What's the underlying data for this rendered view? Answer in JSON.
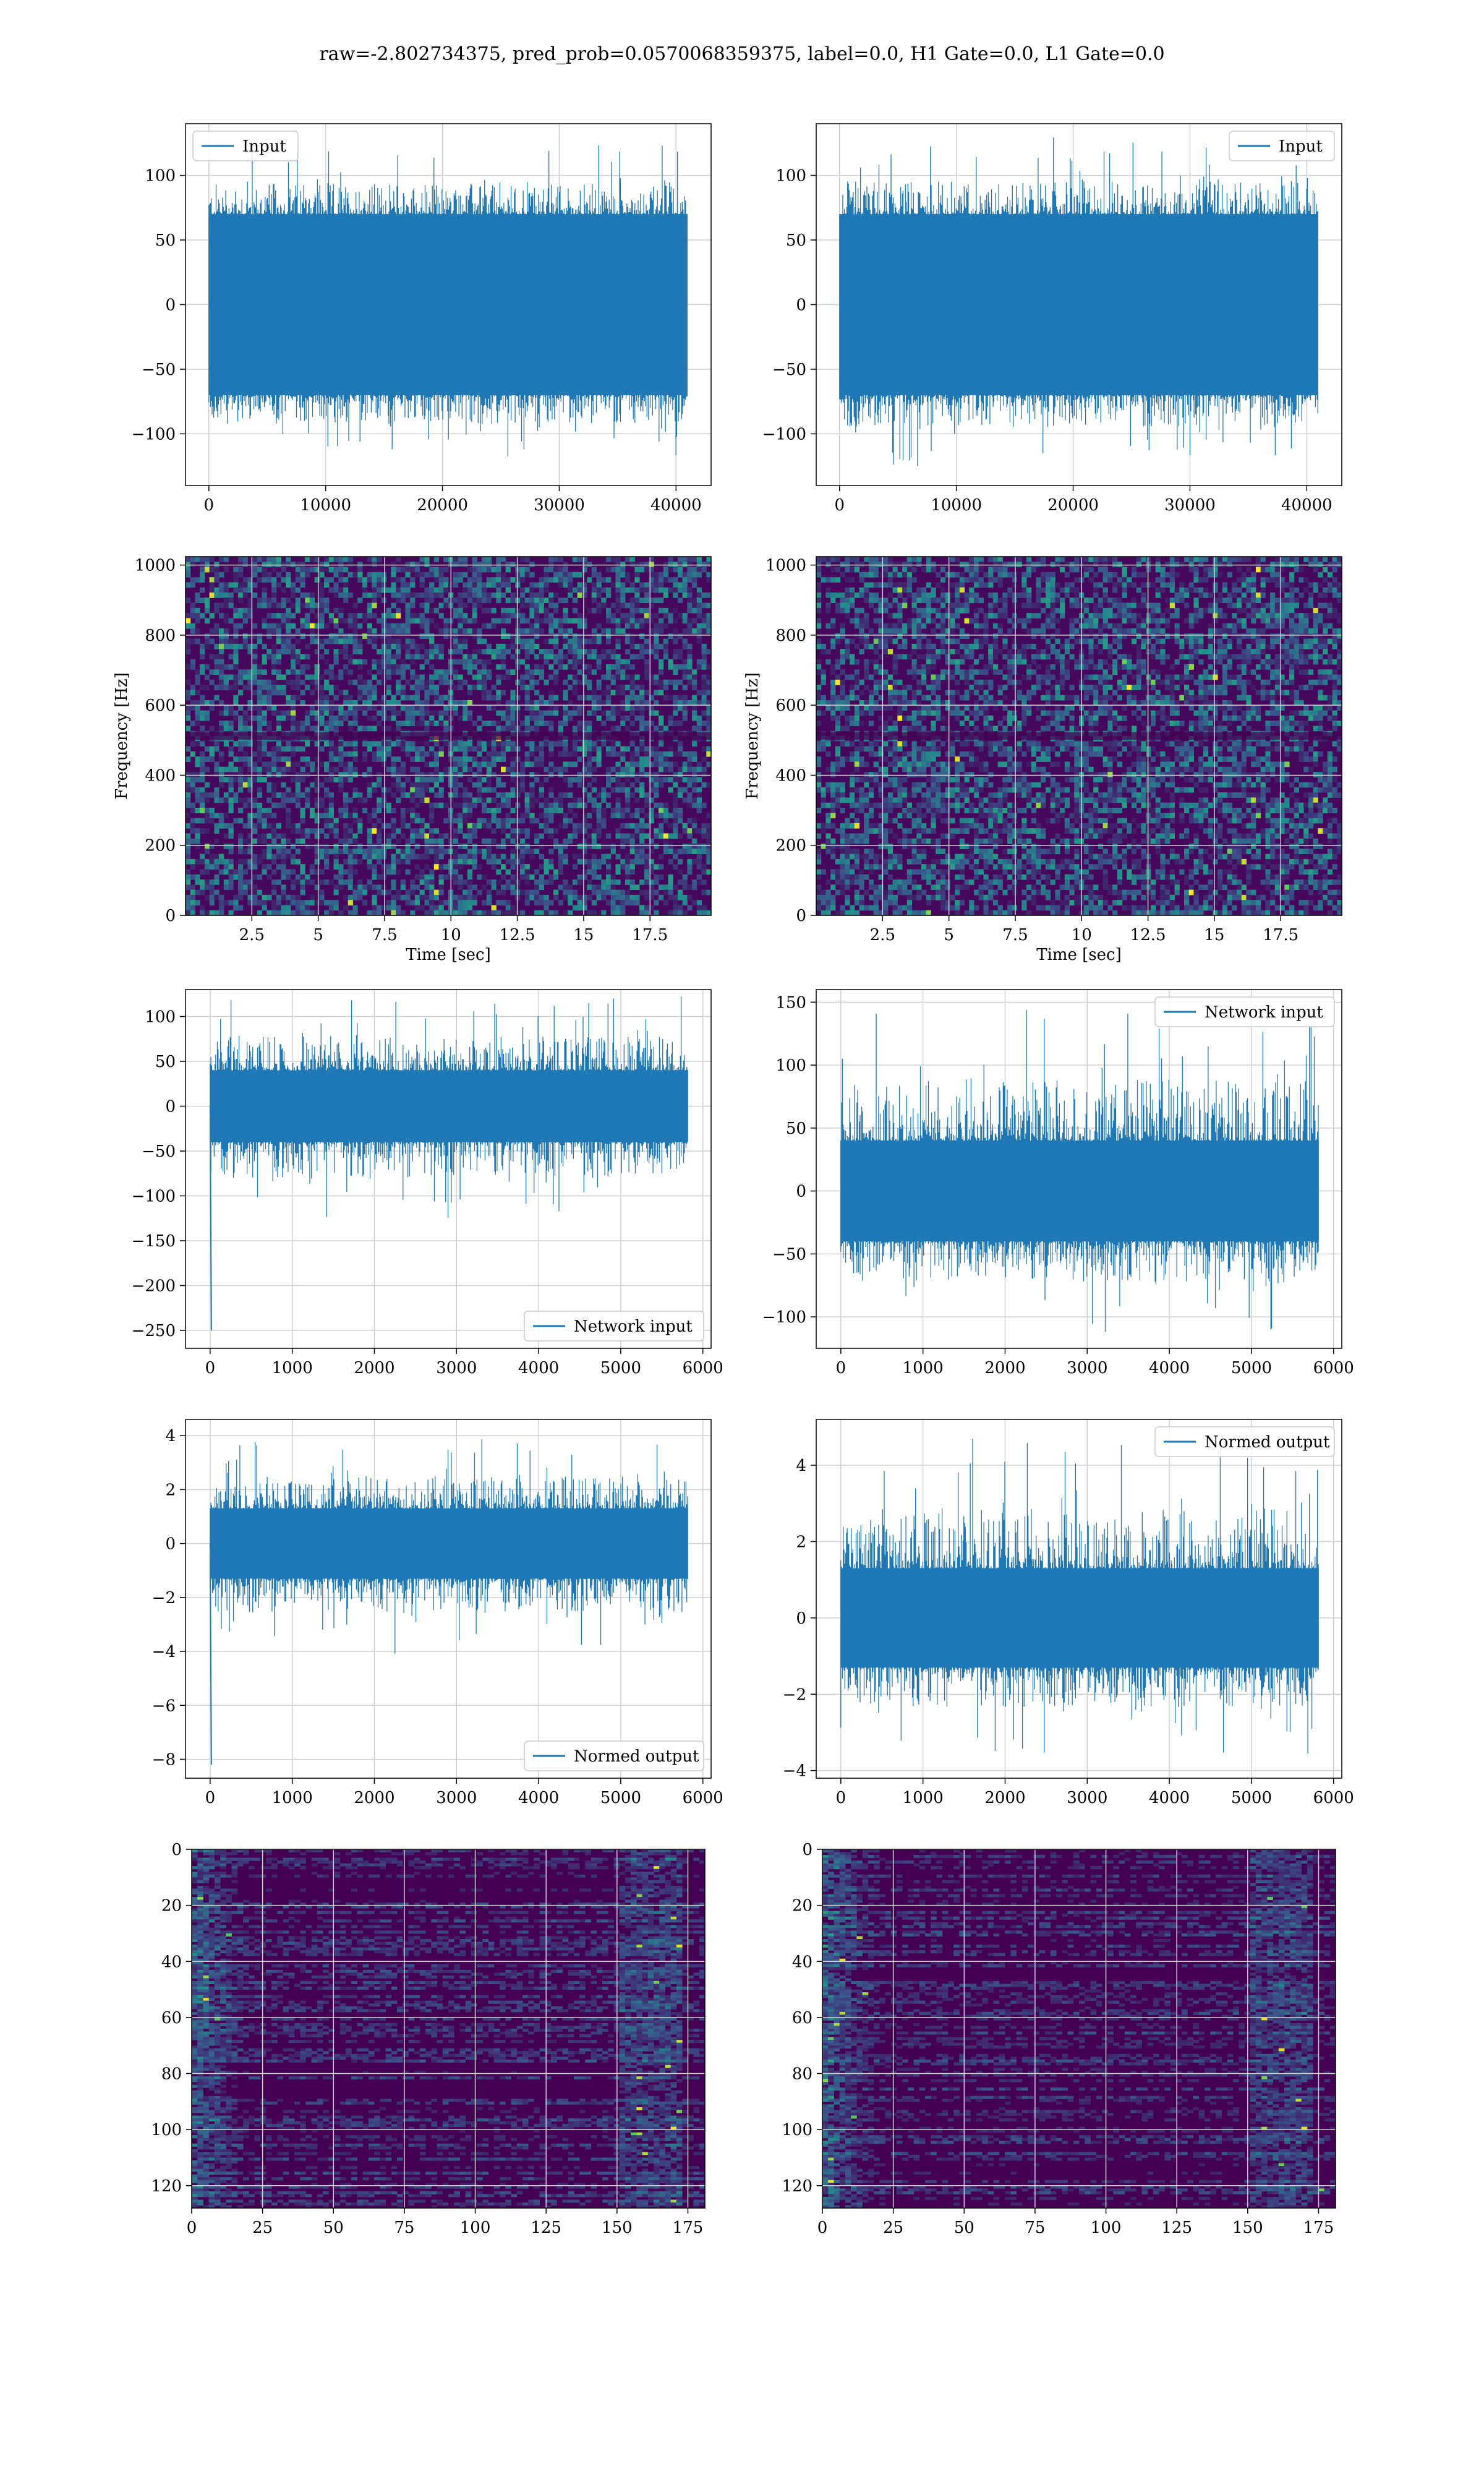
{
  "suptitle": "raw=-2.802734375, pred_prob=0.0570068359375, label=0.0, H1 Gate=0.0, L1 Gate=0.0",
  "colors": {
    "series": "#1f77b4",
    "grid": "#d0d0d0",
    "axis": "#000000",
    "viridis": [
      "#440154",
      "#3b528b",
      "#21918c",
      "#5ec962",
      "#fde725"
    ]
  },
  "chart_data": [
    {
      "type": "line",
      "panel": "input-left",
      "legend": "Input",
      "legend_loc": "upper-left",
      "xlim": [
        -2000,
        43000
      ],
      "ylim": [
        -140,
        140
      ],
      "xticks": [
        0,
        10000,
        20000,
        30000,
        40000
      ],
      "yticks": [
        -100,
        -50,
        0,
        50,
        100
      ],
      "x_extent": [
        0,
        40960
      ],
      "envelope": {
        "low": -70,
        "high": 70,
        "peak_low": -120,
        "peak_high": 125
      },
      "xlabel": "",
      "ylabel": "",
      "grid": true
    },
    {
      "type": "line",
      "panel": "input-right",
      "legend": "Input",
      "legend_loc": "upper-right",
      "xlim": [
        -2000,
        43000
      ],
      "ylim": [
        -140,
        140
      ],
      "xticks": [
        0,
        10000,
        20000,
        30000,
        40000
      ],
      "yticks": [
        -100,
        -50,
        0,
        50,
        100
      ],
      "x_extent": [
        0,
        40960
      ],
      "envelope": {
        "low": -70,
        "high": 70,
        "peak_low": -125,
        "peak_high": 130
      },
      "xlabel": "",
      "ylabel": "",
      "grid": true
    },
    {
      "type": "heatmap",
      "panel": "spectrogram-left",
      "xlim": [
        0,
        19.8
      ],
      "ylim": [
        0,
        1024
      ],
      "xticks": [
        2.5,
        5.0,
        7.5,
        10.0,
        12.5,
        15.0,
        17.5
      ],
      "yticks": [
        0,
        200,
        400,
        600,
        800,
        1000
      ],
      "xlabel": "Time [sec]",
      "ylabel": "Frequency [Hz]",
      "grid": true,
      "colormap": "viridis"
    },
    {
      "type": "heatmap",
      "panel": "spectrogram-right",
      "xlim": [
        0,
        19.8
      ],
      "ylim": [
        0,
        1024
      ],
      "xticks": [
        2.5,
        5.0,
        7.5,
        10.0,
        12.5,
        15.0,
        17.5
      ],
      "yticks": [
        0,
        200,
        400,
        600,
        800,
        1000
      ],
      "xlabel": "Time [sec]",
      "ylabel": "Frequency [Hz]",
      "grid": true,
      "colormap": "viridis"
    },
    {
      "type": "line",
      "panel": "network-left",
      "legend": "Network input",
      "legend_loc": "lower-right",
      "xlim": [
        -300,
        6100
      ],
      "ylim": [
        -270,
        130
      ],
      "xticks": [
        0,
        1000,
        2000,
        3000,
        4000,
        5000,
        6000
      ],
      "yticks": [
        -250,
        -200,
        -150,
        -100,
        -50,
        0,
        50,
        100
      ],
      "x_extent": [
        0,
        5820
      ],
      "envelope": {
        "low": -40,
        "high": 40,
        "peak_low": -130,
        "peak_high": 125
      },
      "spike": {
        "x": 0,
        "y": -250
      },
      "xlabel": "",
      "ylabel": "",
      "grid": true
    },
    {
      "type": "line",
      "panel": "network-right",
      "legend": "Network input",
      "legend_loc": "upper-right",
      "xlim": [
        -300,
        6100
      ],
      "ylim": [
        -125,
        160
      ],
      "xticks": [
        0,
        1000,
        2000,
        3000,
        4000,
        5000,
        6000
      ],
      "yticks": [
        -100,
        -50,
        0,
        50,
        100,
        150
      ],
      "x_extent": [
        0,
        5820
      ],
      "envelope": {
        "low": -40,
        "high": 40,
        "peak_low": -112,
        "peak_high": 148
      },
      "xlabel": "",
      "ylabel": "",
      "grid": true
    },
    {
      "type": "line",
      "panel": "normed-left",
      "legend": "Normed output",
      "legend_loc": "lower-right",
      "xlim": [
        -300,
        6100
      ],
      "ylim": [
        -8.7,
        4.6
      ],
      "xticks": [
        0,
        1000,
        2000,
        3000,
        4000,
        5000,
        6000
      ],
      "yticks": [
        -8,
        -6,
        -4,
        -2,
        0,
        2,
        4
      ],
      "x_extent": [
        0,
        5820
      ],
      "envelope": {
        "low": -1.3,
        "high": 1.3,
        "peak_low": -4.2,
        "peak_high": 4.0
      },
      "spike": {
        "x": 0,
        "y": -8.2
      },
      "xlabel": "",
      "ylabel": "",
      "grid": true
    },
    {
      "type": "line",
      "panel": "normed-right",
      "legend": "Normed output",
      "legend_loc": "upper-right",
      "xlim": [
        -300,
        6100
      ],
      "ylim": [
        -4.2,
        5.2
      ],
      "xticks": [
        0,
        1000,
        2000,
        3000,
        4000,
        5000,
        6000
      ],
      "yticks": [
        -4,
        -2,
        0,
        2,
        4
      ],
      "x_extent": [
        0,
        5820
      ],
      "envelope": {
        "low": -1.3,
        "high": 1.3,
        "peak_low": -3.6,
        "peak_high": 4.8
      },
      "xlabel": "",
      "ylabel": "",
      "grid": true
    },
    {
      "type": "heatmap",
      "panel": "matrix-left",
      "xlim": [
        0,
        181
      ],
      "ylim": [
        128,
        0
      ],
      "xticks": [
        0,
        25,
        50,
        75,
        100,
        125,
        150,
        175
      ],
      "yticks": [
        0,
        20,
        40,
        60,
        80,
        100,
        120
      ],
      "xlabel": "",
      "ylabel": "",
      "grid": true,
      "colormap": "viridis"
    },
    {
      "type": "heatmap",
      "panel": "matrix-right",
      "xlim": [
        0,
        181
      ],
      "ylim": [
        128,
        0
      ],
      "xticks": [
        0,
        25,
        50,
        75,
        100,
        125,
        150,
        175
      ],
      "yticks": [
        0,
        20,
        40,
        60,
        80,
        100,
        120
      ],
      "xlabel": "",
      "ylabel": "",
      "grid": true,
      "colormap": "viridis"
    }
  ]
}
